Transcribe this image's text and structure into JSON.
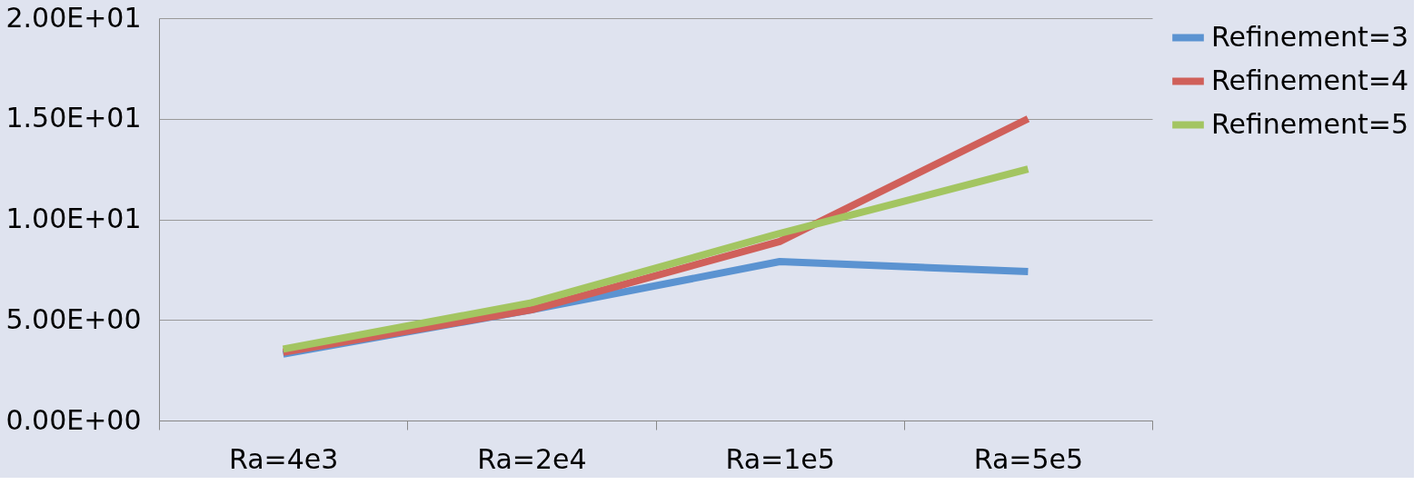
{
  "chart_data": {
    "type": "line",
    "categories": [
      "Ra=4e3",
      "Ra=2e4",
      "Ra=1e5",
      "Ra=5e5"
    ],
    "series": [
      {
        "name": "Refinement=3",
        "color": "#5b93d1",
        "values": [
          3.3,
          5.5,
          7.9,
          7.4
        ]
      },
      {
        "name": "Refinement=4",
        "color": "#d0605a",
        "values": [
          3.4,
          5.5,
          8.9,
          15.0
        ]
      },
      {
        "name": "Refinement=5",
        "color": "#a3c561",
        "values": [
          3.55,
          5.85,
          9.3,
          12.5
        ]
      }
    ],
    "ylim": [
      0,
      20
    ],
    "yticks": [
      {
        "value": 0,
        "label": "0.00E+00"
      },
      {
        "value": 5,
        "label": "5.00E+00"
      },
      {
        "value": 10,
        "label": "1.00E+01"
      },
      {
        "value": 15,
        "label": "1.50E+01"
      },
      {
        "value": 20,
        "label": "2.00E+01"
      }
    ],
    "grid": "y",
    "legend": "right",
    "marker": "none",
    "line_style": "solid"
  }
}
